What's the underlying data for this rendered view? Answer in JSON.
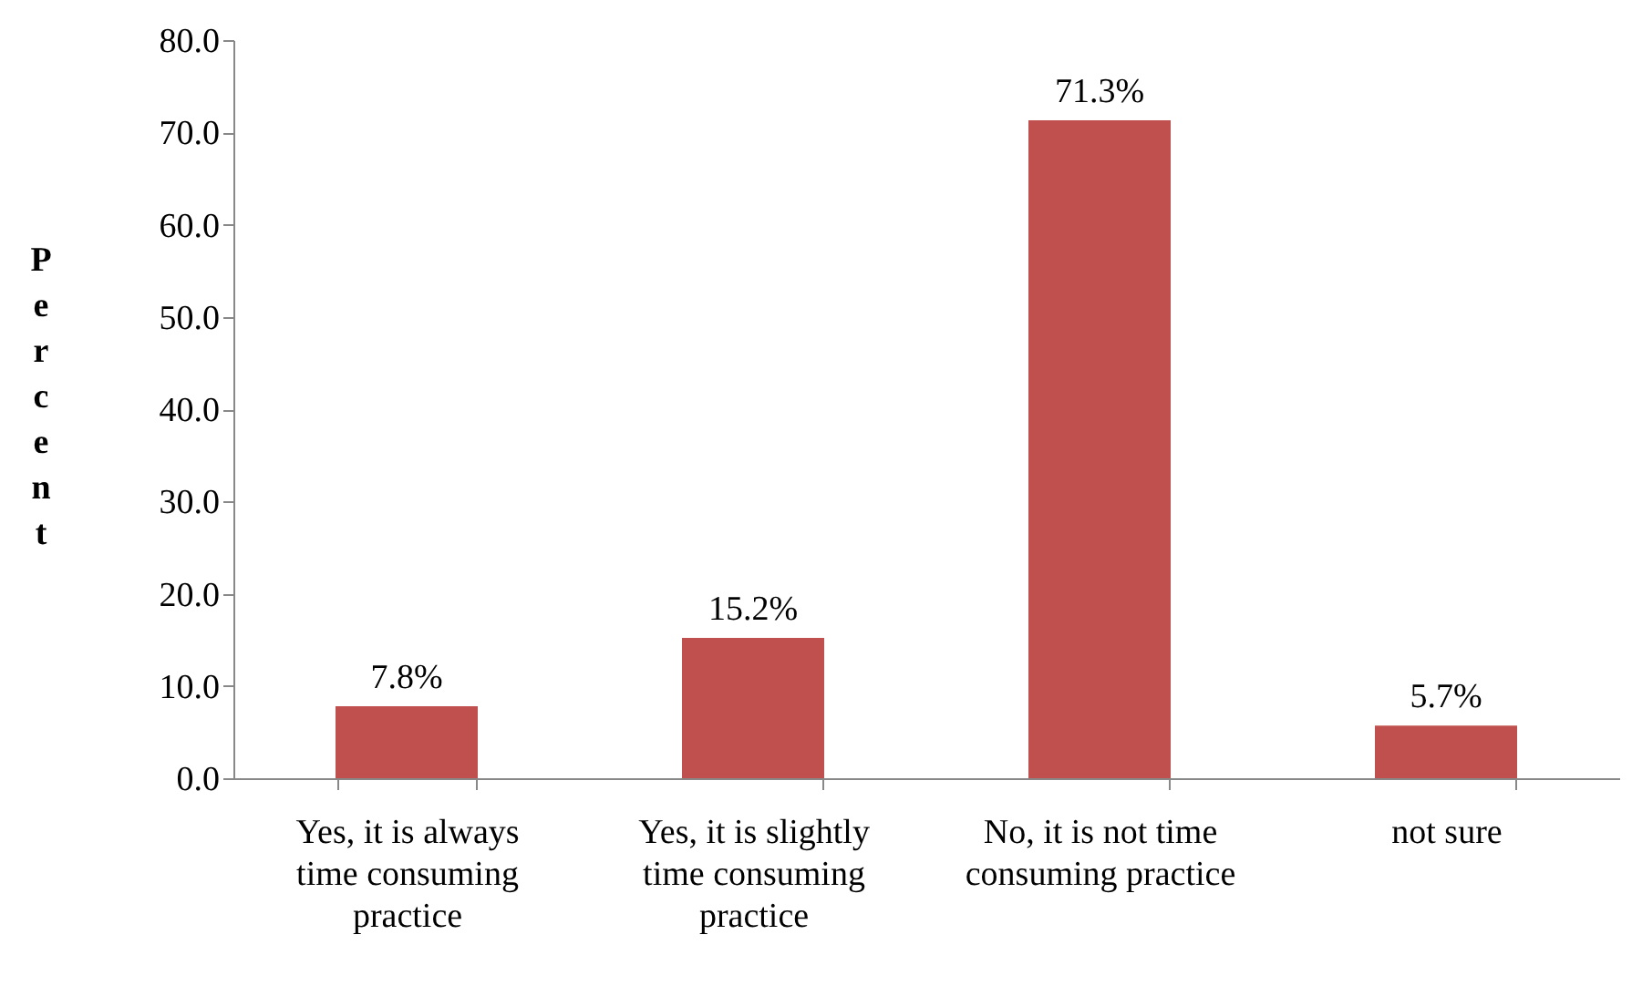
{
  "chart_data": {
    "type": "bar",
    "ylabel": "Percent",
    "categories": [
      "Yes, it is always time consuming practice",
      "Yes, it is slightly time consuming practice",
      "No, it is not time consuming practice",
      "not sure"
    ],
    "values": [
      7.8,
      15.2,
      71.3,
      5.7
    ],
    "value_labels": [
      "7.8%",
      "15.2%",
      "71.3%",
      "5.7%"
    ],
    "color": "#c0504d",
    "ylim": [
      0,
      80
    ],
    "yticks": [
      {
        "value": 0,
        "label": "0.0"
      },
      {
        "value": 10,
        "label": "10.0"
      },
      {
        "value": 20,
        "label": "20.0"
      },
      {
        "value": 30,
        "label": "30.0"
      },
      {
        "value": 40,
        "label": "40.0"
      },
      {
        "value": 50,
        "label": "50.0"
      },
      {
        "value": 60,
        "label": "60.0"
      },
      {
        "value": 70,
        "label": "70.0"
      },
      {
        "value": 80,
        "label": "80.0"
      }
    ],
    "grid": false
  }
}
